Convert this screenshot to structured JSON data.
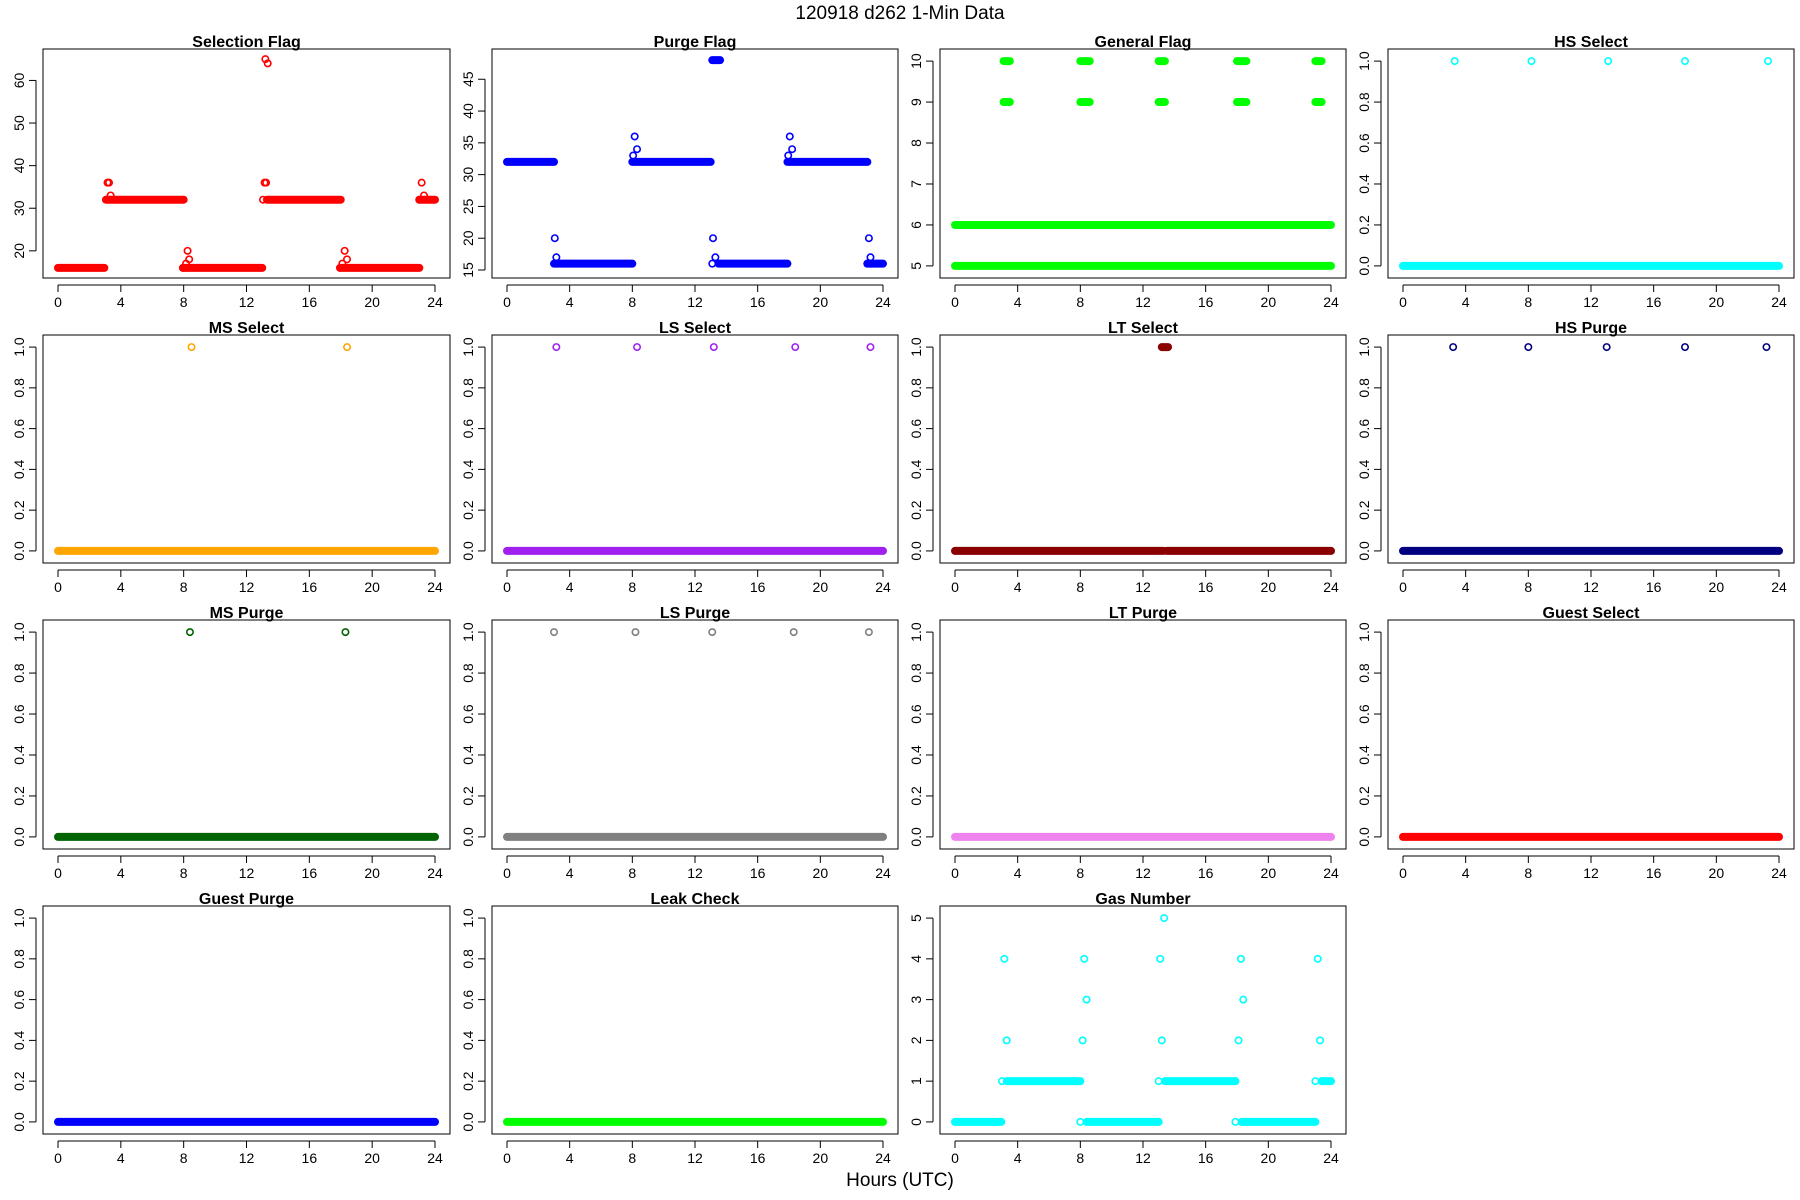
{
  "figure": {
    "title": "120918   d262   1-Min Data",
    "xlabel": "Hours (UTC)"
  },
  "chart_data": [
    {
      "type": "scatter",
      "title": "Selection Flag",
      "color": "#ff0000",
      "xlim": [
        0,
        24
      ],
      "xticks": [
        0,
        4,
        8,
        12,
        16,
        20,
        24
      ],
      "ylim": [
        15.5,
        65.5
      ],
      "yticks": [
        20,
        30,
        40,
        50,
        60
      ],
      "segments": [
        {
          "x0": 0,
          "x1": 2.95,
          "y": 16
        },
        {
          "x0": 3.1,
          "x1": 8.0,
          "y": 32
        },
        {
          "x0": 7.95,
          "x1": 13.0,
          "y": 16
        },
        {
          "x0": 13.3,
          "x1": 18.0,
          "y": 32
        },
        {
          "x0": 18.0,
          "x1": 23.0,
          "y": 16
        },
        {
          "x0": 23.0,
          "x1": 24.0,
          "y": 32
        }
      ],
      "points": [
        [
          3.05,
          32
        ],
        [
          3.15,
          36
        ],
        [
          3.25,
          36
        ],
        [
          3.35,
          33
        ],
        [
          8.0,
          16
        ],
        [
          8.15,
          17
        ],
        [
          8.25,
          20
        ],
        [
          8.35,
          18
        ],
        [
          13.05,
          32
        ],
        [
          13.15,
          36
        ],
        [
          13.25,
          36
        ],
        [
          13.2,
          65
        ],
        [
          13.35,
          64
        ],
        [
          17.95,
          16
        ],
        [
          18.1,
          17
        ],
        [
          18.25,
          20
        ],
        [
          18.4,
          18
        ],
        [
          23.0,
          32
        ],
        [
          23.15,
          36
        ],
        [
          23.3,
          33
        ]
      ]
    },
    {
      "type": "scatter",
      "title": "Purge Flag",
      "color": "#0000ff",
      "xlim": [
        0,
        24
      ],
      "xticks": [
        0,
        4,
        8,
        12,
        16,
        20,
        24
      ],
      "ylim": [
        15,
        48.5
      ],
      "yticks": [
        15,
        20,
        25,
        30,
        35,
        40,
        45
      ],
      "segments": [
        {
          "x0": 0,
          "x1": 3.0,
          "y": 32
        },
        {
          "x0": 3.0,
          "x1": 8.0,
          "y": 16
        },
        {
          "x0": 8.0,
          "x1": 13.0,
          "y": 32
        },
        {
          "x0": 13.5,
          "x1": 17.9,
          "y": 16
        },
        {
          "x0": 17.9,
          "x1": 23.0,
          "y": 32
        },
        {
          "x0": 23.0,
          "x1": 24.0,
          "y": 16
        },
        {
          "x0": 13.1,
          "x1": 13.6,
          "y": 48
        }
      ],
      "points": [
        [
          3.05,
          20
        ],
        [
          3.15,
          17
        ],
        [
          8.05,
          33
        ],
        [
          8.15,
          36
        ],
        [
          8.3,
          34
        ],
        [
          13.1,
          16
        ],
        [
          13.15,
          20
        ],
        [
          13.3,
          17
        ],
        [
          17.95,
          33
        ],
        [
          18.05,
          36
        ],
        [
          18.2,
          34
        ],
        [
          23.0,
          16
        ],
        [
          23.1,
          20
        ],
        [
          23.2,
          17
        ]
      ]
    },
    {
      "type": "scatter",
      "title": "General Flag",
      "color": "#00ff00",
      "xlim": [
        0,
        24
      ],
      "xticks": [
        0,
        4,
        8,
        12,
        16,
        20,
        24
      ],
      "ylim": [
        4.9,
        10.1
      ],
      "yticks": [
        5,
        6,
        7,
        8,
        9,
        10
      ],
      "segments": [
        {
          "x0": 0,
          "x1": 24,
          "y": 5
        },
        {
          "x0": 0,
          "x1": 24,
          "y": 6
        },
        {
          "x0": 3.1,
          "x1": 3.5,
          "y": 9
        },
        {
          "x0": 3.1,
          "x1": 3.5,
          "y": 10
        },
        {
          "x0": 8.0,
          "x1": 8.6,
          "y": 9
        },
        {
          "x0": 8.0,
          "x1": 8.6,
          "y": 10
        },
        {
          "x0": 13.0,
          "x1": 13.4,
          "y": 9
        },
        {
          "x0": 13.0,
          "x1": 13.4,
          "y": 10
        },
        {
          "x0": 18.0,
          "x1": 18.6,
          "y": 9
        },
        {
          "x0": 18.0,
          "x1": 18.6,
          "y": 10
        },
        {
          "x0": 23.0,
          "x1": 23.4,
          "y": 9
        },
        {
          "x0": 23.0,
          "x1": 23.4,
          "y": 10
        }
      ],
      "points": []
    },
    {
      "type": "scatter",
      "title": "HS Select",
      "color": "#00ffff",
      "xlim": [
        0,
        24
      ],
      "xticks": [
        0,
        4,
        8,
        12,
        16,
        20,
        24
      ],
      "ylim": [
        -0.02,
        1.02
      ],
      "yticks": [
        0.0,
        0.2,
        0.4,
        0.6,
        0.8,
        1.0
      ],
      "segments": [
        {
          "x0": 0,
          "x1": 24,
          "y": 0
        }
      ],
      "points": [
        [
          3.3,
          1
        ],
        [
          8.2,
          1
        ],
        [
          13.1,
          1
        ],
        [
          18.0,
          1
        ],
        [
          23.3,
          1
        ]
      ]
    },
    {
      "type": "scatter",
      "title": "MS Select",
      "color": "#ffa500",
      "xlim": [
        0,
        24
      ],
      "xticks": [
        0,
        4,
        8,
        12,
        16,
        20,
        24
      ],
      "ylim": [
        -0.02,
        1.02
      ],
      "yticks": [
        0.0,
        0.2,
        0.4,
        0.6,
        0.8,
        1.0
      ],
      "segments": [
        {
          "x0": 0,
          "x1": 24,
          "y": 0
        }
      ],
      "points": [
        [
          8.5,
          1
        ],
        [
          18.4,
          1
        ]
      ]
    },
    {
      "type": "scatter",
      "title": "LS Select",
      "color": "#a020f0",
      "xlim": [
        0,
        24
      ],
      "xticks": [
        0,
        4,
        8,
        12,
        16,
        20,
        24
      ],
      "ylim": [
        -0.02,
        1.02
      ],
      "yticks": [
        0.0,
        0.2,
        0.4,
        0.6,
        0.8,
        1.0
      ],
      "segments": [
        {
          "x0": 0,
          "x1": 24,
          "y": 0
        }
      ],
      "points": [
        [
          3.15,
          1
        ],
        [
          8.3,
          1
        ],
        [
          13.2,
          1
        ],
        [
          18.4,
          1
        ],
        [
          23.2,
          1
        ]
      ]
    },
    {
      "type": "scatter",
      "title": "LT Select",
      "color": "#8b0000",
      "xlim": [
        0,
        24
      ],
      "xticks": [
        0,
        4,
        8,
        12,
        16,
        20,
        24
      ],
      "ylim": [
        -0.02,
        1.02
      ],
      "yticks": [
        0.0,
        0.2,
        0.4,
        0.6,
        0.8,
        1.0
      ],
      "segments": [
        {
          "x0": 0,
          "x1": 13.3,
          "y": 0
        },
        {
          "x0": 13.5,
          "x1": 24,
          "y": 0
        },
        {
          "x0": 13.2,
          "x1": 13.6,
          "y": 1
        }
      ],
      "points": []
    },
    {
      "type": "scatter",
      "title": "HS Purge",
      "color": "#000080",
      "xlim": [
        0,
        24
      ],
      "xticks": [
        0,
        4,
        8,
        12,
        16,
        20,
        24
      ],
      "ylim": [
        -0.02,
        1.02
      ],
      "yticks": [
        0.0,
        0.2,
        0.4,
        0.6,
        0.8,
        1.0
      ],
      "segments": [
        {
          "x0": 0,
          "x1": 24,
          "y": 0
        }
      ],
      "points": [
        [
          3.2,
          1
        ],
        [
          8.0,
          1
        ],
        [
          13.0,
          1
        ],
        [
          18.0,
          1
        ],
        [
          23.2,
          1
        ]
      ]
    },
    {
      "type": "scatter",
      "title": "MS Purge",
      "color": "#006400",
      "xlim": [
        0,
        24
      ],
      "xticks": [
        0,
        4,
        8,
        12,
        16,
        20,
        24
      ],
      "ylim": [
        -0.02,
        1.02
      ],
      "yticks": [
        0.0,
        0.2,
        0.4,
        0.6,
        0.8,
        1.0
      ],
      "segments": [
        {
          "x0": 0,
          "x1": 24,
          "y": 0
        }
      ],
      "points": [
        [
          8.4,
          1
        ],
        [
          18.3,
          1
        ]
      ]
    },
    {
      "type": "scatter",
      "title": "LS Purge",
      "color": "#808080",
      "xlim": [
        0,
        24
      ],
      "xticks": [
        0,
        4,
        8,
        12,
        16,
        20,
        24
      ],
      "ylim": [
        -0.02,
        1.02
      ],
      "yticks": [
        0.0,
        0.2,
        0.4,
        0.6,
        0.8,
        1.0
      ],
      "segments": [
        {
          "x0": 0,
          "x1": 24,
          "y": 0
        }
      ],
      "points": [
        [
          3.0,
          1
        ],
        [
          8.2,
          1
        ],
        [
          13.1,
          1
        ],
        [
          18.3,
          1
        ],
        [
          23.1,
          1
        ]
      ]
    },
    {
      "type": "scatter",
      "title": "LT Purge",
      "color": "#ee82ee",
      "xlim": [
        0,
        24
      ],
      "xticks": [
        0,
        4,
        8,
        12,
        16,
        20,
        24
      ],
      "ylim": [
        -0.02,
        1.02
      ],
      "yticks": [
        0.0,
        0.2,
        0.4,
        0.6,
        0.8,
        1.0
      ],
      "segments": [
        {
          "x0": 0,
          "x1": 24,
          "y": 0
        }
      ],
      "points": []
    },
    {
      "type": "scatter",
      "title": "Guest Select",
      "color": "#ff0000",
      "xlim": [
        0,
        24
      ],
      "xticks": [
        0,
        4,
        8,
        12,
        16,
        20,
        24
      ],
      "ylim": [
        -0.02,
        1.02
      ],
      "yticks": [
        0.0,
        0.2,
        0.4,
        0.6,
        0.8,
        1.0
      ],
      "segments": [
        {
          "x0": 0,
          "x1": 24,
          "y": 0
        }
      ],
      "points": []
    },
    {
      "type": "scatter",
      "title": "Guest Purge",
      "color": "#0000ff",
      "xlim": [
        0,
        24
      ],
      "xticks": [
        0,
        4,
        8,
        12,
        16,
        20,
        24
      ],
      "ylim": [
        -0.02,
        1.02
      ],
      "yticks": [
        0.0,
        0.2,
        0.4,
        0.6,
        0.8,
        1.0
      ],
      "segments": [
        {
          "x0": 0,
          "x1": 24,
          "y": 0
        }
      ],
      "points": []
    },
    {
      "type": "scatter",
      "title": "Leak Check",
      "color": "#00ff00",
      "xlim": [
        0,
        24
      ],
      "xticks": [
        0,
        4,
        8,
        12,
        16,
        20,
        24
      ],
      "ylim": [
        -0.02,
        1.02
      ],
      "yticks": [
        0.0,
        0.2,
        0.4,
        0.6,
        0.8,
        1.0
      ],
      "segments": [
        {
          "x0": 0,
          "x1": 24,
          "y": 0
        }
      ],
      "points": []
    },
    {
      "type": "scatter",
      "title": "Gas Number",
      "color": "#00ffff",
      "xlim": [
        0,
        24
      ],
      "xticks": [
        0,
        4,
        8,
        12,
        16,
        20,
        24
      ],
      "ylim": [
        -0.1,
        5.1
      ],
      "yticks": [
        0,
        1,
        2,
        3,
        4,
        5
      ],
      "segments": [
        {
          "x0": 0,
          "x1": 2.95,
          "y": 0
        },
        {
          "x0": 3.3,
          "x1": 8.0,
          "y": 1
        },
        {
          "x0": 8.4,
          "x1": 13.0,
          "y": 0
        },
        {
          "x0": 13.4,
          "x1": 17.9,
          "y": 1
        },
        {
          "x0": 18.3,
          "x1": 23.0,
          "y": 0
        },
        {
          "x0": 23.4,
          "x1": 24.0,
          "y": 1
        }
      ],
      "points": [
        [
          3.0,
          1
        ],
        [
          3.15,
          4
        ],
        [
          3.3,
          2
        ],
        [
          8.0,
          0
        ],
        [
          8.15,
          2
        ],
        [
          8.25,
          4
        ],
        [
          8.4,
          3
        ],
        [
          13.0,
          1
        ],
        [
          13.1,
          4
        ],
        [
          13.2,
          2
        ],
        [
          13.35,
          5
        ],
        [
          17.9,
          0
        ],
        [
          18.1,
          2
        ],
        [
          18.25,
          4
        ],
        [
          18.4,
          3
        ],
        [
          23.0,
          1
        ],
        [
          23.15,
          4
        ],
        [
          23.3,
          2
        ]
      ]
    }
  ]
}
